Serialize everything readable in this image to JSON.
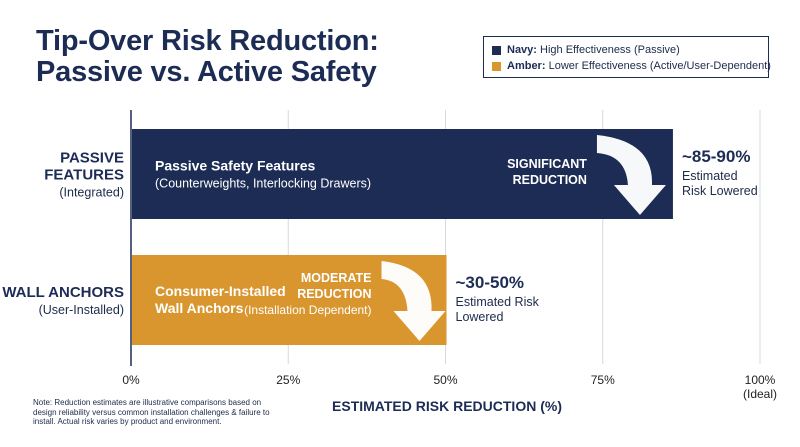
{
  "title_lines": [
    "Tip-Over Risk Reduction:",
    "Passive vs. Active Safety"
  ],
  "legend": [
    {
      "key": "Navy:",
      "text": "High Effectiveness (Passive)",
      "color": "#1c2c55"
    },
    {
      "key": "Amber:",
      "text": "Lower Effectiveness (Active/User-Dependent)",
      "color": "#d9962f"
    }
  ],
  "note": "Note: Reduction estimates are illustrative comparisons based on design reliability versus common installation challenges & failure to install. Actual risk varies by product and environment.",
  "chart_data": {
    "type": "bar",
    "orientation": "horizontal",
    "xlabel": "ESTIMATED RISK REDUCTION (%)",
    "xlim": [
      0,
      100
    ],
    "grid": true,
    "ticks": [
      {
        "value": 0,
        "lines": [
          "0%"
        ]
      },
      {
        "value": 25,
        "lines": [
          "25%"
        ]
      },
      {
        "value": 50,
        "lines": [
          "50%"
        ]
      },
      {
        "value": 75,
        "lines": [
          "75%"
        ]
      },
      {
        "value": 100,
        "lines": [
          "100%",
          "(Ideal)"
        ]
      }
    ],
    "bars": [
      {
        "category_lines": [
          "PASSIVE",
          "FEATURES"
        ],
        "category_sub": "(Integrated)",
        "value": 86,
        "color": "#1c2c55",
        "label_title_lines": [
          "Passive Safety Features"
        ],
        "label_sub_lines": [
          "(Counterweights, Interlocking Drawers)"
        ],
        "callout_lines": [
          "SIGNIFICANT",
          "REDUCTION"
        ],
        "callout_sub": "",
        "value_label": "~85-90%",
        "value_sub_lines": [
          "Estimated",
          "Risk Lowered"
        ]
      },
      {
        "category_lines": [
          "WALL ANCHORS"
        ],
        "category_sub": "(User-Installed)",
        "value": 50,
        "color": "#d9962f",
        "label_title_lines": [
          "Consumer-Installed",
          "Wall Anchors"
        ],
        "label_sub_lines": [],
        "callout_lines": [
          "MODERATE",
          "REDUCTION"
        ],
        "callout_sub": "(Installation Dependent)",
        "value_label": "~30-50%",
        "value_sub_lines": [
          "Estimated Risk",
          "Lowered"
        ]
      }
    ]
  }
}
